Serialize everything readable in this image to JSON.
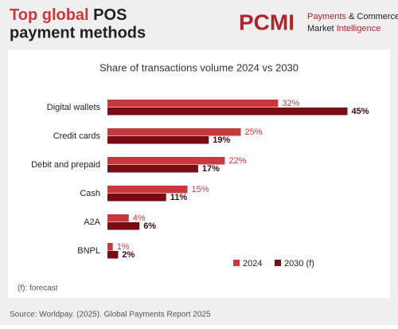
{
  "header": {
    "title_highlight": "Top global",
    "title_rest": "POS",
    "title_line2": "payment methods"
  },
  "logo": {
    "mark": "PCMI",
    "line1_a": "Payments",
    "line1_b": "& Commerce",
    "line2_a": "Market",
    "line2_b": "Intelligence"
  },
  "chart_data": {
    "type": "hbar",
    "title": "Share of transactions volume 2024 vs 2030",
    "categories": [
      "Digital wallets",
      "Credit cards",
      "Debit and prepaid",
      "Cash",
      "A2A",
      "BNPL"
    ],
    "series": [
      {
        "name": "2024",
        "color": "#c8383c",
        "values": [
          32,
          25,
          22,
          15,
          4,
          1
        ],
        "value_labels": [
          "32%",
          "25%",
          "22%",
          "15%",
          "4%",
          "1%"
        ]
      },
      {
        "name": "2030 (f)",
        "color": "#7a0a14",
        "values": [
          45,
          19,
          17,
          11,
          6,
          2
        ],
        "value_labels": [
          "45%",
          "19%",
          "17%",
          "11%",
          "6%",
          "2%"
        ]
      }
    ]
  },
  "footnote": "(f): forecast",
  "source": "Source: Worldpay. (2025). Global Payments Report 2025"
}
